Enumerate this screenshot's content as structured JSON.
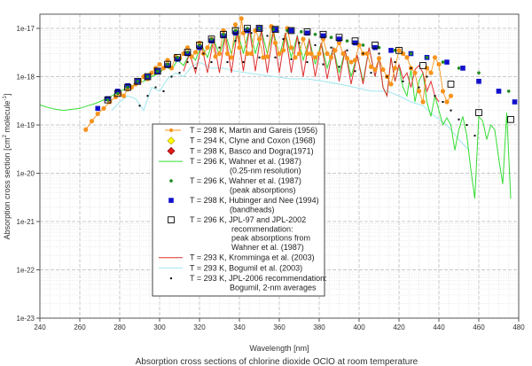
{
  "chart_data": {
    "type": "line",
    "title": "Absorption cross sections of chlorine dioxide OClO at room temperature",
    "xlabel": "Wavelength [nm]",
    "ylabel": "Absorption cross section [cm² molecule⁻¹]",
    "ylabel_parts": {
      "main": "Absorption cross section [cm",
      "sup1": "2",
      "mid": "  molecule",
      "sup2": "-1",
      "end": "]"
    },
    "xlim": [
      240,
      480
    ],
    "ylim": [
      1e-23,
      1e-17
    ],
    "yscale": "log",
    "grid": true,
    "legend_position": "center-left",
    "x_ticks": [
      "240",
      "260",
      "280",
      "300",
      "320",
      "340",
      "360",
      "380",
      "400",
      "420",
      "440",
      "460",
      "480"
    ],
    "x_tick_values": [
      240,
      260,
      280,
      300,
      320,
      340,
      360,
      380,
      400,
      420,
      440,
      460,
      480
    ],
    "y_ticks": [
      "1e-17",
      "1e-18",
      "1e-19",
      "1e-20",
      "1e-21",
      "1e-22",
      "1e-23"
    ],
    "y_tick_values": [
      -17,
      -18,
      -19,
      -20,
      -21,
      -22,
      -23
    ],
    "series": [
      {
        "name": "T = 298 K, Martin and Gareis (1956)",
        "legend": [
          "T = 298 K, Martin and Gareis (1956)"
        ],
        "color": "#f7941d",
        "marker": "circle",
        "line": true,
        "x": [
          263,
          266,
          269,
          272,
          275,
          278,
          280,
          282,
          284,
          286,
          288,
          290,
          292,
          294,
          296,
          298,
          300,
          302,
          304,
          306,
          308,
          310,
          312,
          314,
          316,
          318,
          320,
          322,
          324,
          326,
          328,
          330,
          332,
          334,
          336,
          338,
          340,
          341,
          342,
          344,
          346,
          348,
          350,
          352,
          354,
          356,
          358,
          360,
          362,
          364,
          366,
          368,
          370,
          372,
          374,
          376,
          378,
          380,
          382,
          384,
          386,
          388,
          390,
          392,
          394,
          396,
          398,
          400,
          402,
          404,
          406,
          408,
          410,
          412,
          414,
          416,
          418,
          420,
          422,
          424,
          426,
          428,
          430,
          432,
          434,
          436,
          438,
          440,
          442,
          444,
          446
        ],
        "y": [
          8e-20,
          1.2e-19,
          1.7e-19,
          2.2e-19,
          3e-19,
          3.8e-19,
          4.5e-19,
          4e-19,
          5.5e-19,
          6e-19,
          7e-19,
          8e-19,
          1e-18,
          9e-19,
          1.2e-18,
          1.5e-18,
          1.8e-18,
          1.5e-18,
          2.2e-18,
          1.5e-18,
          2.6e-18,
          2.4e-18,
          3e-18,
          4e-18,
          2.6e-18,
          3.2e-18,
          5e-18,
          3e-18,
          4e-18,
          6e-18,
          2.6e-18,
          3e-18,
          9e-18,
          3e-18,
          2.5e-18,
          1.2e-17,
          4e-18,
          1.6e-17,
          8e-18,
          3e-18,
          3e-18,
          9e-18,
          6e-18,
          2.5e-18,
          2.6e-18,
          1.1e-17,
          5e-18,
          3e-18,
          3.5e-18,
          1e-17,
          4e-18,
          2.5e-18,
          3e-18,
          6e-18,
          3e-18,
          3e-18,
          2.5e-18,
          3e-18,
          6e-18,
          3e-18,
          2.5e-18,
          3.5e-18,
          5e-18,
          3e-18,
          2.4e-18,
          2e-18,
          2.2e-18,
          4.5e-18,
          3e-18,
          3e-18,
          1.6e-18,
          1.4e-18,
          2.4e-18,
          1.4e-18,
          1e-18,
          7e-19,
          1.5e-18,
          3.5e-18,
          3e-18,
          2.5e-18,
          1.5e-18,
          1.2e-18,
          5e-19,
          3e-19,
          1.5e-18,
          1.2e-18,
          2.5e-18,
          1.8e-18,
          5e-19,
          3e-19,
          4e-19
        ]
      },
      {
        "name": "T = 294 K, Clyne and Coxon (1968)",
        "legend": [
          "T = 294 K, Clyne and Coxon (1968)"
        ],
        "color": "#ffff00",
        "stroke": "#b8a000",
        "marker": "diamond",
        "line": false,
        "x": [],
        "y": []
      },
      {
        "name": "T = 298 K, Basco and Dogra(1971)",
        "legend": [
          "T = 298 K, Basco and Dogra(1971)"
        ],
        "color": "#e41a1c",
        "marker": "diamond",
        "line": false,
        "x": [],
        "y": []
      },
      {
        "name": "T = 296 K, Wahner et al. (1987) (0.25-nm resolution)",
        "legend": [
          "T = 296 K, Wahner et al. (1987)",
          "(0.25-nm resolution)"
        ],
        "color": "#33dd33",
        "marker": "none",
        "line": true,
        "x": [
          240,
          244,
          248,
          252,
          256,
          260,
          264,
          268,
          272,
          276,
          280,
          284,
          288,
          292,
          296,
          300,
          303,
          306,
          309,
          312,
          315,
          318,
          321,
          324,
          327,
          330,
          333,
          336,
          339,
          342,
          345,
          348,
          351,
          354,
          357,
          360,
          363,
          366,
          369,
          372,
          375,
          378,
          381,
          384,
          387,
          390,
          393,
          396,
          399,
          402,
          405,
          408,
          410,
          412,
          414,
          416,
          418,
          420,
          421,
          422,
          424,
          426,
          428,
          430,
          432,
          434,
          436,
          438,
          440,
          442,
          444,
          446,
          448,
          450,
          452,
          454,
          456,
          458,
          460,
          462,
          464,
          466,
          468,
          470,
          472,
          474,
          476
        ],
        "y": [
          2.6e-19,
          2.3e-19,
          2.1e-19,
          2e-19,
          2.1e-19,
          2.2e-19,
          2.5e-19,
          2.8e-19,
          3.3e-19,
          4e-19,
          5e-19,
          5.8e-19,
          7e-19,
          8e-19,
          1e-18,
          1.2e-18,
          1.6e-18,
          1.4e-18,
          2.2e-18,
          1.7e-18,
          3e-18,
          2.2e-18,
          4.5e-18,
          2.5e-18,
          6e-18,
          2.8e-18,
          7.5e-18,
          3e-18,
          9e-18,
          3e-18,
          1e-17,
          3e-18,
          9e-18,
          3e-18,
          9e-18,
          2.6e-18,
          8e-18,
          2.5e-18,
          7e-18,
          2.2e-18,
          6e-18,
          1.8e-18,
          5e-18,
          1.5e-18,
          4e-18,
          1.2e-18,
          3.5e-18,
          1e-18,
          2.8e-18,
          8e-19,
          4e-18,
          1e-18,
          2.5e-18,
          6e-19,
          4e-19,
          2.5e-18,
          8e-19,
          1.8e-18,
          9e-19,
          6e-19,
          4e-19,
          1.4e-18,
          3e-19,
          8e-19,
          1.2e-18,
          3e-19,
          1.5e-19,
          4e-19,
          2e-19,
          1e-19,
          1.4e-19,
          1e-19,
          3e-20,
          8e-20,
          1.5e-19,
          6e-20,
          1.2e-20,
          3e-21,
          1.5e-19,
          1.2e-19,
          5e-20,
          1e-19,
          8e-20,
          2e-20,
          6e-21,
          1.8e-19,
          3e-21
        ]
      },
      {
        "name": "T = 296 K, Wahner et al. (1987) (peak absorptions)",
        "legend": [
          "T = 296 K, Wahner et al. (1987)",
          "(peak absorptions)"
        ],
        "color": "#228b22",
        "marker": "dot",
        "line": false,
        "x": [
          274,
          279,
          284,
          289,
          294,
          299,
          304,
          309,
          314,
          320,
          326,
          332,
          338,
          344,
          350,
          357,
          364,
          371,
          378,
          386,
          394,
          402,
          410,
          418,
          426,
          434,
          442,
          450,
          460,
          475
        ],
        "y": [
          3.3e-19,
          4.5e-19,
          6e-19,
          8e-19,
          1e-18,
          1.3e-18,
          1.8e-18,
          2.5e-18,
          3.2e-18,
          4.5e-18,
          6e-18,
          7.5e-18,
          9e-18,
          1e-17,
          1e-17,
          9.5e-18,
          9e-18,
          8.5e-18,
          7.5e-18,
          6.5e-18,
          5.5e-18,
          4.5e-18,
          4e-18,
          3.5e-18,
          3e-18,
          2.5e-18,
          2e-18,
          1.5e-18,
          1.2e-18,
          5e-19
        ]
      },
      {
        "name": "T = 298 K, Hubinger and Nee (1994) (bandheads)",
        "legend": [
          "T = 298 K, Hubinger and Nee (1994)",
          "(bandheads)"
        ],
        "color": "#1010cc",
        "marker": "square",
        "line": false,
        "x": [
          269,
          274,
          279,
          284,
          289,
          294,
          299,
          304,
          309,
          314,
          320,
          326,
          332,
          338,
          344,
          350,
          358,
          366,
          374,
          382,
          390,
          398,
          408,
          416,
          426,
          434,
          444,
          452,
          460,
          470,
          478
        ],
        "y": [
          2.2e-19,
          3.5e-19,
          5e-19,
          6.5e-19,
          8e-19,
          1e-18,
          1.3e-18,
          1.7e-18,
          2.3e-18,
          3e-18,
          4e-18,
          5.5e-18,
          7e-18,
          8e-18,
          9e-18,
          1e-17,
          9.5e-18,
          9e-18,
          8e-18,
          7e-18,
          6e-18,
          5e-18,
          4e-18,
          3.5e-18,
          3e-18,
          2.5e-18,
          2e-18,
          1.5e-18,
          8e-19,
          5e-19,
          3e-19
        ]
      },
      {
        "name": "T = 296 K, JPL-97 and JPL-2002 recommendation: peak absorptions from Wahner et al. (1987)",
        "legend": [
          "T = 296 K, JPL-97 and JPL-2002",
          "recommendation:",
          "peak absorptions from",
          "Wahner et al. (1987)"
        ],
        "color": "#000000",
        "marker": "open-square",
        "line": false,
        "x": [
          274,
          279,
          284,
          289,
          294,
          299,
          304,
          309,
          314,
          320,
          326,
          332,
          338,
          344,
          350,
          358,
          366,
          374,
          382,
          390,
          398,
          408,
          420,
          432,
          446,
          460,
          476
        ],
        "y": [
          3.3e-19,
          4.5e-19,
          6e-19,
          8e-19,
          1e-18,
          1.3e-18,
          1.8e-18,
          2.5e-18,
          3.2e-18,
          4.5e-18,
          6e-18,
          7.5e-18,
          9e-18,
          1e-17,
          1e-17,
          9.5e-18,
          9e-18,
          8.5e-18,
          7.5e-18,
          6.5e-18,
          5.5e-18,
          4.5e-18,
          3.5e-18,
          1.7e-18,
          7e-19,
          1.8e-19,
          1.3e-19
        ]
      },
      {
        "name": "T = 293 K, Kromminga et al. (2003)",
        "legend": [
          "T = 293 K, Kromminga et al. (2003)"
        ],
        "color": "#e03030",
        "marker": "none",
        "line": true,
        "x": [
          312,
          315,
          318,
          321,
          324,
          327,
          330,
          333,
          336,
          339,
          342,
          345,
          348,
          351,
          354,
          357,
          360,
          363,
          366,
          369,
          372,
          375,
          378,
          381,
          384,
          387,
          390,
          393,
          396,
          399,
          402,
          405,
          408,
          410,
          412,
          414,
          416,
          418,
          420,
          422,
          424,
          426,
          428,
          430,
          432,
          434,
          436,
          438,
          440
        ],
        "y": [
          1.3e-18,
          3e-18,
          1.2e-18,
          4.5e-18,
          1.2e-18,
          6e-18,
          1.2e-18,
          7.5e-18,
          1.2e-18,
          9e-18,
          1.3e-18,
          1e-17,
          1.3e-18,
          9e-18,
          1.2e-18,
          9e-18,
          1.2e-18,
          8e-18,
          1.2e-18,
          7e-18,
          1e-18,
          6e-18,
          1e-18,
          5e-18,
          9e-19,
          4e-18,
          8e-19,
          3.5e-18,
          7e-19,
          2.8e-18,
          7e-19,
          4e-18,
          1e-18,
          2.5e-18,
          6e-19,
          4e-19,
          2.5e-18,
          8e-19,
          1.8e-18,
          9e-19,
          1.2e-18,
          6e-19,
          1.4e-18,
          1.7e-18,
          1.2e-18,
          5e-19,
          8e-19,
          4e-19,
          3e-19
        ]
      },
      {
        "name": "T = 293 K, Bogumil et al. (2003)",
        "legend": [
          "T = 293 K, Bogumil et al. (2003)"
        ],
        "color": "#a0e8f0",
        "marker": "none",
        "line": true,
        "x": [
          276,
          280,
          284,
          288,
          292,
          296,
          300,
          304,
          308,
          312,
          316,
          320,
          326,
          332,
          338,
          344,
          350,
          358,
          366,
          374,
          382,
          390,
          398,
          406,
          414,
          420,
          426,
          432,
          438,
          444,
          450,
          455
        ],
        "y": [
          2e-19,
          3e-19,
          4e-19,
          3.5e-19,
          2e-19,
          6e-19,
          5e-19,
          9e-19,
          1.2e-18,
          1e-18,
          1.6e-18,
          2e-18,
          1.5e-18,
          1.5e-18,
          1.3e-18,
          1.2e-18,
          1.1e-18,
          1e-18,
          9e-19,
          9e-19,
          8e-19,
          7e-19,
          6e-19,
          5e-19,
          5e-19,
          4e-19,
          3e-19,
          2.5e-19,
          1.5e-19,
          1e-19,
          5e-20,
          3e-20
        ]
      },
      {
        "name": "T = 293 K, JPL-2006 recommendation: Bogumil, 2-nm averages",
        "legend": [
          "T = 293 K, JPL-2006 recommendation:",
          "Bogumil, 2-nm averages"
        ],
        "color": "#000000",
        "marker": "small-dot",
        "line": false,
        "x": [
          290,
          294,
          298,
          302,
          306,
          310,
          314,
          318,
          322,
          326,
          330,
          334,
          338,
          342,
          346,
          350,
          354,
          358,
          362,
          366,
          370,
          374,
          378,
          382,
          386,
          390,
          394,
          398,
          402,
          406,
          410,
          414,
          418,
          422,
          426,
          430,
          434,
          438,
          442,
          446,
          450,
          454,
          458
        ],
        "y": [
          2.5e-19,
          4e-19,
          6e-19,
          5e-19,
          1e-18,
          1.2e-18,
          2e-18,
          1.5e-18,
          3e-18,
          2e-18,
          4e-18,
          2e-18,
          5.5e-18,
          2e-18,
          8e-18,
          2.5e-18,
          7e-18,
          2.5e-18,
          6e-18,
          2.3e-18,
          5e-18,
          2e-18,
          4.5e-18,
          1.8e-18,
          4e-18,
          1.6e-18,
          3.5e-18,
          1.3e-18,
          3e-18,
          1.2e-18,
          3e-18,
          1e-18,
          2e-18,
          8e-19,
          1.5e-18,
          6e-19,
          1e-18,
          4e-19,
          3e-19,
          2e-19,
          1.3e-19,
          1e-19,
          6e-20
        ]
      }
    ]
  }
}
